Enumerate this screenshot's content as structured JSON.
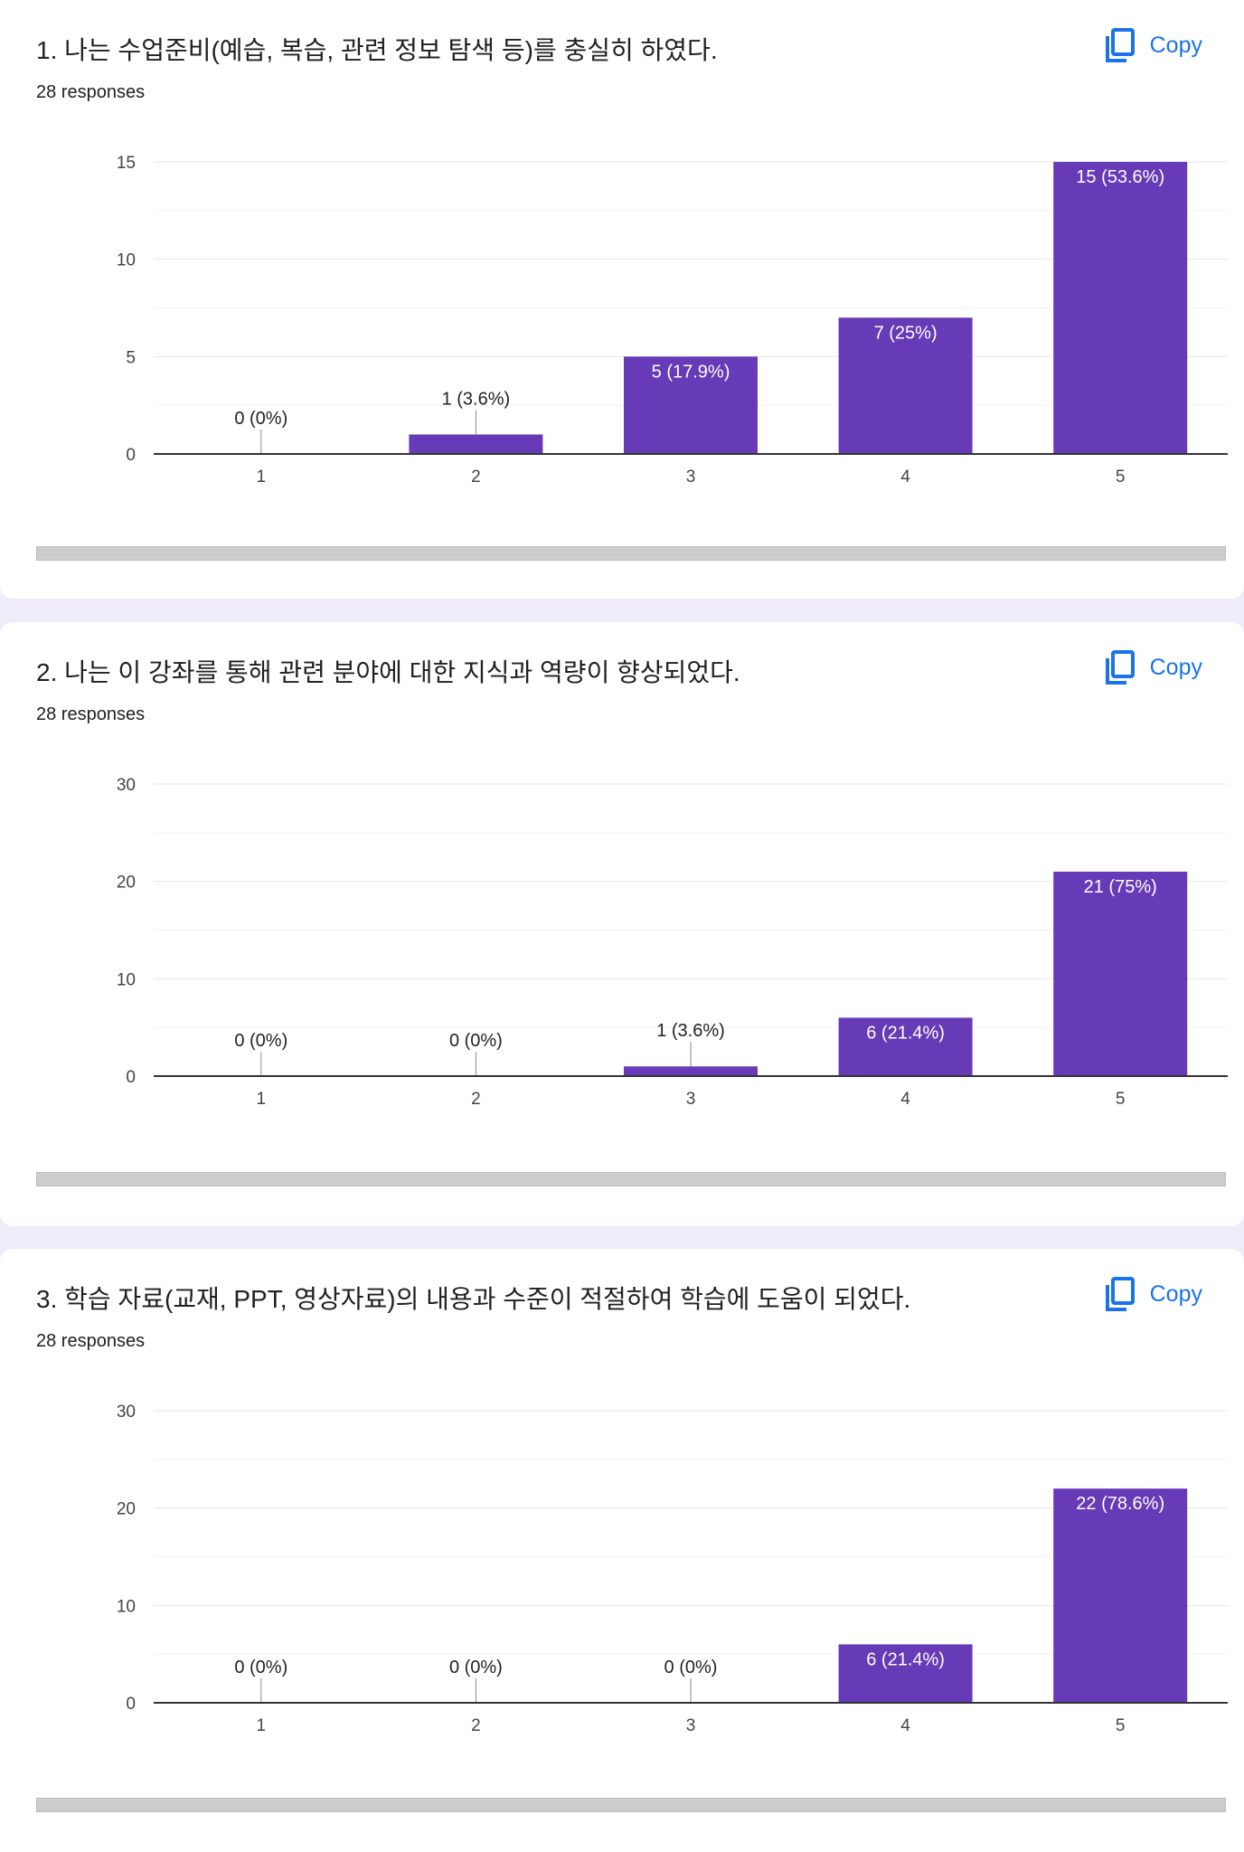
{
  "copy_label": "Copy",
  "questions": [
    {
      "title": "1. 나는 수업준비(예습, 복습, 관련 정보 탐색 등)를 충실히 하였다.",
      "responses": "28 responses",
      "chart": {
        "type": "bar",
        "categories": [
          "1",
          "2",
          "3",
          "4",
          "5"
        ],
        "values": [
          0,
          1,
          5,
          7,
          15
        ],
        "labels": [
          "0 (0%)",
          "1 (3.6%)",
          "5 (17.9%)",
          "7 (25%)",
          "15 (53.6%)"
        ],
        "yticks": [
          0,
          5,
          10,
          15
        ],
        "ylim": [
          0,
          15
        ]
      }
    },
    {
      "title": "2. 나는 이 강좌를 통해 관련 분야에 대한 지식과 역량이 향상되었다.",
      "responses": "28 responses",
      "chart": {
        "type": "bar",
        "categories": [
          "1",
          "2",
          "3",
          "4",
          "5"
        ],
        "values": [
          0,
          0,
          1,
          6,
          21
        ],
        "labels": [
          "0 (0%)",
          "0 (0%)",
          "1 (3.6%)",
          "6 (21.4%)",
          "21 (75%)"
        ],
        "yticks": [
          0,
          10,
          20,
          30
        ],
        "ylim": [
          0,
          30
        ]
      }
    },
    {
      "title": "3. 학습 자료(교재, PPT, 영상자료)의 내용과 수준이 적절하여 학습에 도움이 되었다.",
      "responses": "28 responses",
      "chart": {
        "type": "bar",
        "categories": [
          "1",
          "2",
          "3",
          "4",
          "5"
        ],
        "values": [
          0,
          0,
          0,
          6,
          22
        ],
        "labels": [
          "0 (0%)",
          "0 (0%)",
          "0 (0%)",
          "6 (21.4%)",
          "22 (78.6%)"
        ],
        "yticks": [
          0,
          10,
          20,
          30
        ],
        "ylim": [
          0,
          30
        ]
      }
    }
  ],
  "chart_data": [
    {
      "type": "bar",
      "title": "1. 나는 수업준비(예습, 복습, 관련 정보 탐색 등)를 충실히 하였다.",
      "categories": [
        "1",
        "2",
        "3",
        "4",
        "5"
      ],
      "values": [
        0,
        1,
        5,
        7,
        15
      ],
      "ylim": [
        0,
        15
      ],
      "grid": true,
      "bar_color": "#673ab7"
    },
    {
      "type": "bar",
      "title": "2. 나는 이 강좌를 통해 관련 분야에 대한 지식과 역량이 향상되었다.",
      "categories": [
        "1",
        "2",
        "3",
        "4",
        "5"
      ],
      "values": [
        0,
        0,
        1,
        6,
        21
      ],
      "ylim": [
        0,
        30
      ],
      "grid": true,
      "bar_color": "#673ab7"
    },
    {
      "type": "bar",
      "title": "3. 학습 자료(교재, PPT, 영상자료)의 내용과 수준이 적절하여 학습에 도움이 되었다.",
      "categories": [
        "1",
        "2",
        "3",
        "4",
        "5"
      ],
      "values": [
        0,
        0,
        0,
        6,
        22
      ],
      "ylim": [
        0,
        30
      ],
      "grid": true,
      "bar_color": "#673ab7"
    }
  ],
  "colors": {
    "bar": "#673ab7",
    "accent": "#1a73e8",
    "page_bg": "#f0ebf8"
  },
  "icons": {
    "copy": "copy-icon"
  }
}
